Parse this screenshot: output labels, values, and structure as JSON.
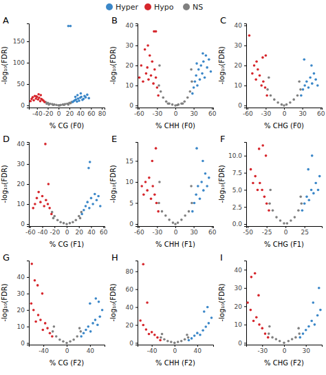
{
  "chart_data": [
    {
      "type": "scatter",
      "title": "A",
      "x_label": "% CG (F0)",
      "y_label": "-log₁₀(FDR)",
      "legend": "top",
      "xlim": [
        -55,
        85
      ],
      "xticks": [
        -40,
        -20,
        0,
        20,
        40,
        60,
        80
      ],
      "ylim": [
        -5,
        192
      ],
      "yticks": [
        0,
        50,
        100,
        150
      ],
      "series": [
        {
          "name": "Hyper",
          "color": "#3b87c8",
          "x": [
            26,
            28,
            30,
            32,
            34,
            36,
            38,
            40,
            42,
            44,
            46,
            48,
            50,
            53,
            56,
            31,
            35,
            41,
            18,
            22
          ],
          "values": [
            8,
            10,
            12,
            14,
            9,
            16,
            11,
            18,
            20,
            13,
            15,
            22,
            19,
            25,
            17,
            20,
            24,
            28,
            186,
            186
          ]
        },
        {
          "name": "Hypo",
          "color": "#d6262c",
          "x": [
            -26,
            -28,
            -30,
            -32,
            -34,
            -36,
            -38,
            -40,
            -42,
            -44,
            -46,
            -48,
            -50,
            -52,
            -33,
            -37,
            -41
          ],
          "values": [
            8,
            11,
            13,
            15,
            10,
            18,
            14,
            20,
            16,
            22,
            12,
            19,
            15,
            10,
            24,
            26,
            21
          ]
        },
        {
          "name": "NS",
          "color": "#808080",
          "x": [
            -24,
            -20,
            -16,
            -12,
            -8,
            -4,
            0,
            4,
            8,
            12,
            16,
            20,
            24,
            -22,
            -18,
            18,
            22,
            -10,
            10,
            2
          ],
          "values": [
            8,
            6,
            4,
            3,
            2,
            1,
            0,
            1,
            2,
            3,
            4,
            6,
            8,
            4,
            2,
            2,
            5,
            1,
            1,
            0
          ]
        }
      ]
    },
    {
      "type": "scatter",
      "title": "B",
      "x_label": "% CHH (F0)",
      "y_label": "-log₁₀(FDR)",
      "xlim": [
        -62,
        62
      ],
      "xticks": [
        -60,
        -30,
        0,
        30,
        60
      ],
      "ylim": [
        -1,
        41
      ],
      "yticks": [
        0,
        10,
        20,
        30,
        40
      ],
      "series": [
        {
          "name": "Hyper",
          "color": "#3b87c8",
          "x": [
            28,
            30,
            32,
            34,
            36,
            38,
            40,
            42,
            44,
            46,
            48,
            50,
            52,
            55,
            58,
            35,
            45
          ],
          "values": [
            6,
            9,
            12,
            15,
            10,
            18,
            13,
            20,
            16,
            22,
            14,
            25,
            19,
            23,
            17,
            21,
            26
          ]
        },
        {
          "name": "Hypo",
          "color": "#d6262c",
          "x": [
            -28,
            -30,
            -32,
            -34,
            -36,
            -38,
            -40,
            -42,
            -44,
            -46,
            -48,
            -50,
            -53,
            -56,
            -59,
            -35,
            -32,
            -45
          ],
          "values": [
            5,
            9,
            14,
            18,
            11,
            22,
            15,
            25,
            13,
            19,
            16,
            28,
            12,
            20,
            14,
            37,
            37,
            30
          ]
        },
        {
          "name": "NS",
          "color": "#808080",
          "x": [
            -27,
            -24,
            -20,
            -15,
            -10,
            -5,
            0,
            5,
            10,
            15,
            20,
            24,
            27,
            -26,
            26,
            -12,
            12,
            3
          ],
          "values": [
            10,
            7,
            4,
            2,
            1,
            0.5,
            0,
            0.5,
            1,
            2,
            4,
            7,
            12,
            20,
            18,
            1,
            1,
            0.2
          ]
        }
      ]
    },
    {
      "type": "scatter",
      "title": "C",
      "x_label": "% CHG (F0)",
      "y_label": "-log₁₀(FDR)",
      "xlim": [
        -62,
        62
      ],
      "xticks": [
        -60,
        -30,
        0,
        30,
        60
      ],
      "ylim": [
        -1,
        41
      ],
      "yticks": [
        0,
        10,
        20,
        30,
        40
      ],
      "series": [
        {
          "name": "Hyper",
          "color": "#3b87c8",
          "x": [
            28,
            31,
            34,
            37,
            40,
            43,
            46,
            49,
            52,
            55,
            33,
            45
          ],
          "values": [
            5,
            8,
            10,
            12,
            9,
            14,
            11,
            16,
            13,
            10,
            23,
            20
          ]
        },
        {
          "name": "Hypo",
          "color": "#d6262c",
          "x": [
            -28,
            -31,
            -34,
            -37,
            -40,
            -43,
            -46,
            -49,
            -52,
            -57,
            -35,
            -45,
            -30
          ],
          "values": [
            5,
            9,
            12,
            10,
            15,
            18,
            13,
            20,
            16,
            35,
            24,
            22,
            25
          ]
        },
        {
          "name": "NS",
          "color": "#808080",
          "x": [
            -27,
            -22,
            -16,
            -10,
            -4,
            0,
            4,
            10,
            16,
            22,
            27,
            -25,
            25
          ],
          "values": [
            8,
            5,
            3,
            1.5,
            0.5,
            0,
            0.5,
            1.5,
            3,
            5,
            8,
            14,
            12
          ]
        }
      ]
    },
    {
      "type": "scatter",
      "title": "D",
      "x_label": "% CG (F1)",
      "y_label": "-log₁₀(FDR)",
      "xlim": [
        -62,
        62
      ],
      "xticks": [
        -60,
        -40,
        -20,
        0,
        20,
        40,
        60
      ],
      "ylim": [
        -1,
        41
      ],
      "yticks": [
        0,
        10,
        20,
        30,
        40
      ],
      "series": [
        {
          "name": "Hyper",
          "color": "#3b87c8",
          "x": [
            25,
            28,
            31,
            34,
            37,
            40,
            43,
            46,
            49,
            52,
            55,
            38,
            36
          ],
          "values": [
            5,
            7,
            9,
            11,
            8,
            13,
            10,
            15,
            12,
            14,
            9,
            31,
            28
          ]
        },
        {
          "name": "Hypo",
          "color": "#d6262c",
          "x": [
            -25,
            -28,
            -31,
            -34,
            -37,
            -40,
            -43,
            -46,
            -49,
            -52,
            -55,
            -35,
            -30
          ],
          "values": [
            5,
            8,
            10,
            12,
            9,
            14,
            11,
            16,
            13,
            10,
            8,
            40,
            20
          ]
        },
        {
          "name": "NS",
          "color": "#808080",
          "x": [
            -24,
            -20,
            -15,
            -10,
            -5,
            0,
            5,
            10,
            15,
            20,
            24,
            -22,
            22
          ],
          "values": [
            6,
            4,
            2,
            1,
            0.5,
            0,
            0.5,
            1,
            2,
            4,
            6,
            3,
            3
          ]
        }
      ]
    },
    {
      "type": "scatter",
      "title": "E",
      "x_label": "% CHH (F1)",
      "y_label": "-log₁₀(FDR)",
      "xlim": [
        -62,
        62
      ],
      "xticks": [
        -60,
        -30,
        0,
        30,
        60
      ],
      "ylim": [
        -0.5,
        19.5
      ],
      "yticks": [
        0,
        5,
        10,
        15
      ],
      "series": [
        {
          "name": "Hyper",
          "color": "#3b87c8",
          "x": [
            28,
            31,
            34,
            37,
            40,
            43,
            46,
            49,
            52,
            55,
            35,
            45
          ],
          "values": [
            3,
            5,
            7,
            9,
            6,
            10,
            8,
            12,
            9,
            11,
            18,
            15
          ]
        },
        {
          "name": "Hypo",
          "color": "#d6262c",
          "x": [
            -28,
            -31,
            -34,
            -37,
            -40,
            -43,
            -46,
            -49,
            -52,
            -55,
            -32,
            -38
          ],
          "values": [
            3,
            5,
            7,
            9,
            6,
            11,
            8,
            10,
            7,
            9,
            18,
            15
          ]
        },
        {
          "name": "NS",
          "color": "#808080",
          "x": [
            -27,
            -22,
            -16,
            -10,
            -4,
            0,
            4,
            10,
            16,
            22,
            27,
            -26,
            26
          ],
          "values": [
            5,
            3,
            2,
            1,
            0.3,
            0,
            0.3,
            1,
            2,
            3,
            5,
            10,
            9
          ]
        }
      ]
    },
    {
      "type": "scatter",
      "title": "F",
      "x_label": "% CHG (F1)",
      "y_label": "-log₁₀(FDR)",
      "xlim": [
        -52,
        48
      ],
      "xticks": [
        -50,
        -25,
        0,
        25
      ],
      "ylim": [
        -0.3,
        12
      ],
      "yticks": [
        {
          "value": 0,
          "label": "0.0"
        },
        2.5,
        {
          "value": 5,
          "label": "5.0"
        },
        7.5,
        {
          "value": 10,
          "label": "10.0"
        }
      ],
      "series": [
        {
          "name": "Hyper",
          "color": "#3b87c8",
          "x": [
            22,
            25,
            28,
            31,
            34,
            37,
            40,
            43,
            30,
            35,
            45
          ],
          "values": [
            2,
            3,
            4,
            3.5,
            5,
            4.5,
            6,
            5,
            8,
            10,
            7
          ]
        },
        {
          "name": "Hypo",
          "color": "#d6262c",
          "x": [
            -22,
            -25,
            -28,
            -31,
            -34,
            -37,
            -40,
            -43,
            -46,
            -30,
            -35,
            -26
          ],
          "values": [
            2,
            3,
            4,
            5,
            6,
            5,
            7,
            6,
            8,
            11.5,
            11,
            10
          ]
        },
        {
          "name": "NS",
          "color": "#808080",
          "x": [
            -21,
            -17,
            -12,
            -7,
            -2,
            2,
            7,
            12,
            17,
            21,
            -20,
            20
          ],
          "values": [
            3,
            2,
            1,
            0.5,
            0.1,
            0.1,
            0.5,
            1,
            2,
            3,
            5,
            4
          ]
        }
      ]
    },
    {
      "type": "scatter",
      "title": "G",
      "x_label": "% CG (F2)",
      "y_label": "-log₁₀(FDR)",
      "xlim": [
        -65,
        65
      ],
      "xticks": [
        -40,
        0,
        40
      ],
      "ylim": [
        -1,
        50
      ],
      "yticks": [
        0,
        10,
        20,
        30,
        40
      ],
      "series": [
        {
          "name": "Hyper",
          "color": "#3b87c8",
          "x": [
            25,
            29,
            33,
            37,
            41,
            45,
            49,
            53,
            57,
            61,
            40,
            50,
            55
          ],
          "values": [
            4,
            6,
            8,
            10,
            7,
            12,
            14,
            11,
            16,
            20,
            24,
            27,
            25
          ]
        },
        {
          "name": "Hypo",
          "color": "#d6262c",
          "x": [
            -25,
            -29,
            -33,
            -37,
            -41,
            -45,
            -49,
            -53,
            -57,
            -61,
            -42,
            -50,
            -55,
            -60
          ],
          "values": [
            4,
            6,
            9,
            12,
            8,
            14,
            17,
            13,
            20,
            24,
            30,
            35,
            38,
            48
          ]
        },
        {
          "name": "NS",
          "color": "#808080",
          "x": [
            -24,
            -18,
            -12,
            -6,
            0,
            6,
            12,
            18,
            24,
            -22,
            22
          ],
          "values": [
            7,
            4,
            2,
            1,
            0,
            1,
            2,
            4,
            7,
            10,
            9
          ]
        }
      ]
    },
    {
      "type": "scatter",
      "title": "H",
      "x_label": "% CHH (F2)",
      "y_label": "-log₁₀(FDR)",
      "xlim": [
        -65,
        68
      ],
      "xticks": [
        -40,
        0,
        40
      ],
      "ylim": [
        -2,
        92
      ],
      "yticks": [
        0,
        20,
        40,
        60,
        80
      ],
      "series": [
        {
          "name": "Hyper",
          "color": "#3b87c8",
          "x": [
            25,
            30,
            35,
            40,
            45,
            50,
            55,
            60,
            65,
            52,
            58
          ],
          "values": [
            3,
            5,
            8,
            11,
            9,
            14,
            18,
            22,
            28,
            35,
            40
          ]
        },
        {
          "name": "Hypo",
          "color": "#d6262c",
          "x": [
            -25,
            -30,
            -35,
            -40,
            -45,
            -50,
            -55,
            -60,
            -48,
            -55
          ],
          "values": [
            3,
            6,
            9,
            12,
            10,
            15,
            20,
            25,
            45,
            88
          ]
        },
        {
          "name": "NS",
          "color": "#808080",
          "x": [
            -24,
            -18,
            -12,
            -6,
            0,
            6,
            12,
            18,
            24,
            -22,
            22
          ],
          "values": [
            6,
            4,
            2,
            1,
            0,
            1,
            2,
            4,
            6,
            10,
            9
          ]
        }
      ]
    },
    {
      "type": "scatter",
      "title": "I",
      "x_label": "% CHG (F2)",
      "y_label": "-log₁₀(FDR)",
      "xlim": [
        -52,
        52
      ],
      "xticks": [
        -30,
        0,
        30
      ],
      "ylim": [
        -1,
        45
      ],
      "yticks": [
        0,
        10,
        20,
        30,
        40
      ],
      "series": [
        {
          "name": "Hyper",
          "color": "#3b87c8",
          "x": [
            22,
            26,
            30,
            34,
            38,
            42,
            46,
            50,
            40,
            48
          ],
          "values": [
            3,
            5,
            7,
            9,
            12,
            10,
            15,
            18,
            22,
            30
          ]
        },
        {
          "name": "Hypo",
          "color": "#d6262c",
          "x": [
            -22,
            -26,
            -30,
            -34,
            -38,
            -42,
            -46,
            -50,
            -40,
            -45,
            -35
          ],
          "values": [
            3,
            5,
            8,
            10,
            14,
            12,
            18,
            22,
            38,
            36,
            26
          ]
        },
        {
          "name": "NS",
          "color": "#808080",
          "x": [
            -21,
            -16,
            -11,
            -6,
            0,
            6,
            11,
            16,
            21,
            -20,
            20
          ],
          "values": [
            5,
            3,
            2,
            1,
            0,
            1,
            2,
            3,
            5,
            9,
            8
          ]
        }
      ]
    }
  ]
}
